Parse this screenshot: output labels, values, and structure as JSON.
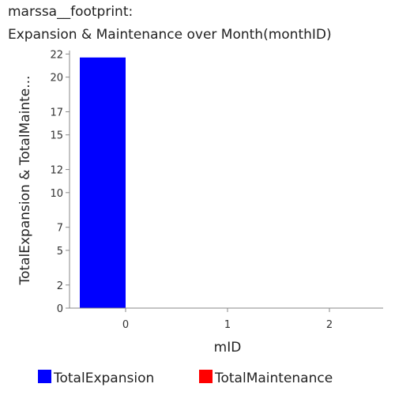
{
  "chart_data": {
    "type": "bar",
    "title_line1": "marssa__footprint:",
    "title_line2": "Expansion & Maintenance over Month(monthID)",
    "xlabel": "mID",
    "ylabel": "TotalExpansion & TotalMainte...",
    "categories": [
      "0",
      "1",
      "2"
    ],
    "y_ticks": [
      "0",
      "2",
      "5",
      "7",
      "10",
      "12",
      "15",
      "17",
      "20",
      "22"
    ],
    "ylim": [
      0,
      22.3
    ],
    "series": [
      {
        "name": "TotalExpansion",
        "color": "#0000ff",
        "values": [
          21.7,
          0,
          0
        ]
      },
      {
        "name": "TotalMaintenance",
        "color": "#ff0000",
        "values": [
          0,
          0,
          0
        ]
      }
    ],
    "legend": "bottom"
  }
}
